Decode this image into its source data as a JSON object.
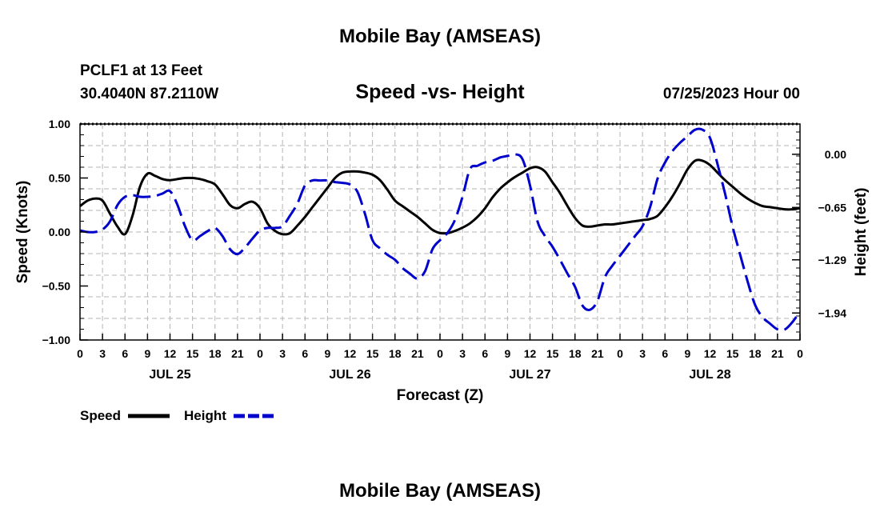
{
  "header": {
    "title": "Mobile Bay (AMSEAS)",
    "station": "PCLF1 at 13 Feet",
    "coords": "30.4040N  87.2110W",
    "datetime": "07/25/2023 Hour 00"
  },
  "footer": {
    "title": "Mobile Bay (AMSEAS)"
  },
  "colors": {
    "speed": "#000000",
    "height": "#0000cc",
    "grid": "#b4b4b4"
  },
  "chart_data": {
    "type": "line",
    "title": "Speed -vs- Height",
    "xlabel": "Forecast (Z)",
    "ylabel": "Speed (Knots)",
    "y2label": "Height (feet)",
    "xlim": [
      0,
      96
    ],
    "ylim": [
      -1.0,
      1.0
    ],
    "y2lim": [
      -2.27,
      0.37
    ],
    "grid": true,
    "legend_position": "bottom-left",
    "x_tick_labels": [
      "0",
      "3",
      "6",
      "9",
      "12",
      "15",
      "18",
      "21",
      "0",
      "3",
      "6",
      "9",
      "12",
      "15",
      "18",
      "21",
      "0",
      "3",
      "6",
      "9",
      "12",
      "15",
      "18",
      "21",
      "0",
      "3",
      "6",
      "9",
      "12",
      "15",
      "18",
      "21",
      "0"
    ],
    "day_labels": [
      {
        "label": "JUL 25",
        "x": 12
      },
      {
        "label": "JUL 26",
        "x": 36
      },
      {
        "label": "JUL 27",
        "x": 60
      },
      {
        "label": "JUL 28",
        "x": 84
      }
    ],
    "y_ticks": [
      1.0,
      0.5,
      0.0,
      -0.5,
      -1.0
    ],
    "y_tick_labels": [
      "1.00",
      "0.50",
      "0.00",
      "−0.50",
      "−1.00"
    ],
    "y2_ticks": [
      0.0,
      -0.65,
      -1.29,
      -1.94
    ],
    "y2_tick_labels": [
      "0.00",
      "−0.65",
      "−1.29",
      "−1.94"
    ],
    "series": [
      {
        "name": "Speed",
        "axis": "left",
        "style": "solid",
        "x": [
          0,
          1,
          2,
          3,
          4,
          5,
          6,
          7,
          8,
          9,
          10,
          11,
          12,
          13,
          14,
          15,
          16,
          17,
          18,
          19,
          20,
          21,
          22,
          23,
          24,
          25,
          26,
          27,
          28,
          29,
          30,
          31,
          32,
          33,
          34,
          35,
          36,
          37,
          38,
          39,
          40,
          41,
          42,
          43,
          44,
          45,
          46,
          47,
          48,
          49,
          50,
          51,
          52,
          53,
          54,
          55,
          56,
          57,
          58,
          59,
          60,
          61,
          62,
          63,
          64,
          65,
          66,
          67,
          68,
          69,
          70,
          71,
          72,
          73,
          74,
          75,
          76,
          77,
          78,
          79,
          80,
          81,
          82,
          83,
          84,
          85,
          86,
          87,
          88,
          89,
          90,
          91,
          92,
          93,
          94,
          95,
          96
        ],
        "y": [
          0.24,
          0.29,
          0.31,
          0.29,
          0.17,
          0.05,
          -0.02,
          0.15,
          0.42,
          0.54,
          0.52,
          0.49,
          0.48,
          0.49,
          0.5,
          0.5,
          0.49,
          0.47,
          0.44,
          0.35,
          0.25,
          0.22,
          0.26,
          0.28,
          0.22,
          0.08,
          0.01,
          -0.02,
          -0.01,
          0.06,
          0.14,
          0.23,
          0.32,
          0.41,
          0.5,
          0.55,
          0.56,
          0.56,
          0.55,
          0.53,
          0.48,
          0.39,
          0.29,
          0.24,
          0.19,
          0.14,
          0.08,
          0.02,
          -0.01,
          -0.01,
          0.01,
          0.04,
          0.08,
          0.14,
          0.22,
          0.32,
          0.4,
          0.46,
          0.51,
          0.55,
          0.59,
          0.6,
          0.56,
          0.46,
          0.36,
          0.24,
          0.13,
          0.06,
          0.05,
          0.06,
          0.07,
          0.07,
          0.08,
          0.09,
          0.1,
          0.11,
          0.12,
          0.15,
          0.23,
          0.33,
          0.45,
          0.58,
          0.66,
          0.66,
          0.62,
          0.55,
          0.48,
          0.42,
          0.36,
          0.31,
          0.27,
          0.24,
          0.23,
          0.22,
          0.21,
          0.21,
          0.22
        ]
      },
      {
        "name": "Height",
        "axis": "right",
        "style": "dashed",
        "x": [
          0,
          1,
          2,
          3,
          4,
          5,
          6,
          7,
          8,
          9,
          10,
          11,
          12,
          13,
          14,
          15,
          16,
          17,
          18,
          19,
          20,
          21,
          22,
          23,
          24,
          25,
          26,
          27,
          28,
          29,
          30,
          31,
          32,
          33,
          34,
          35,
          36,
          37,
          38,
          39,
          40,
          41,
          42,
          43,
          44,
          45,
          46,
          47,
          48,
          49,
          50,
          51,
          52,
          53,
          54,
          55,
          56,
          57,
          58,
          59,
          60,
          61,
          62,
          63,
          64,
          65,
          66,
          67,
          68,
          69,
          70,
          71,
          72,
          73,
          74,
          75,
          76,
          77,
          78,
          79,
          80,
          81,
          82,
          83,
          84,
          85,
          86,
          87,
          88,
          89,
          90,
          91,
          92,
          93,
          94,
          95,
          96
        ],
        "y": [
          -0.93,
          -0.95,
          -0.95,
          -0.92,
          -0.82,
          -0.62,
          -0.52,
          -0.5,
          -0.52,
          -0.52,
          -0.51,
          -0.48,
          -0.45,
          -0.62,
          -0.88,
          -1.05,
          -1.0,
          -0.94,
          -0.9,
          -1.0,
          -1.16,
          -1.22,
          -1.14,
          -1.03,
          -0.93,
          -0.9,
          -0.9,
          -0.88,
          -0.75,
          -0.6,
          -0.38,
          -0.32,
          -0.32,
          -0.32,
          -0.34,
          -0.35,
          -0.37,
          -0.46,
          -0.73,
          -1.05,
          -1.15,
          -1.23,
          -1.29,
          -1.39,
          -1.46,
          -1.52,
          -1.43,
          -1.16,
          -1.05,
          -0.96,
          -0.8,
          -0.52,
          -0.18,
          -0.14,
          -0.1,
          -0.08,
          -0.04,
          -0.02,
          0.0,
          -0.06,
          -0.38,
          -0.82,
          -1.0,
          -1.13,
          -1.29,
          -1.46,
          -1.62,
          -1.85,
          -1.9,
          -1.79,
          -1.5,
          -1.36,
          -1.24,
          -1.12,
          -1.0,
          -0.88,
          -0.65,
          -0.3,
          -0.1,
          0.04,
          0.14,
          0.22,
          0.3,
          0.3,
          0.2,
          -0.12,
          -0.48,
          -0.88,
          -1.22,
          -1.55,
          -1.84,
          -1.99,
          -2.07,
          -2.14,
          -2.14,
          -2.05,
          -1.92
        ]
      }
    ]
  }
}
